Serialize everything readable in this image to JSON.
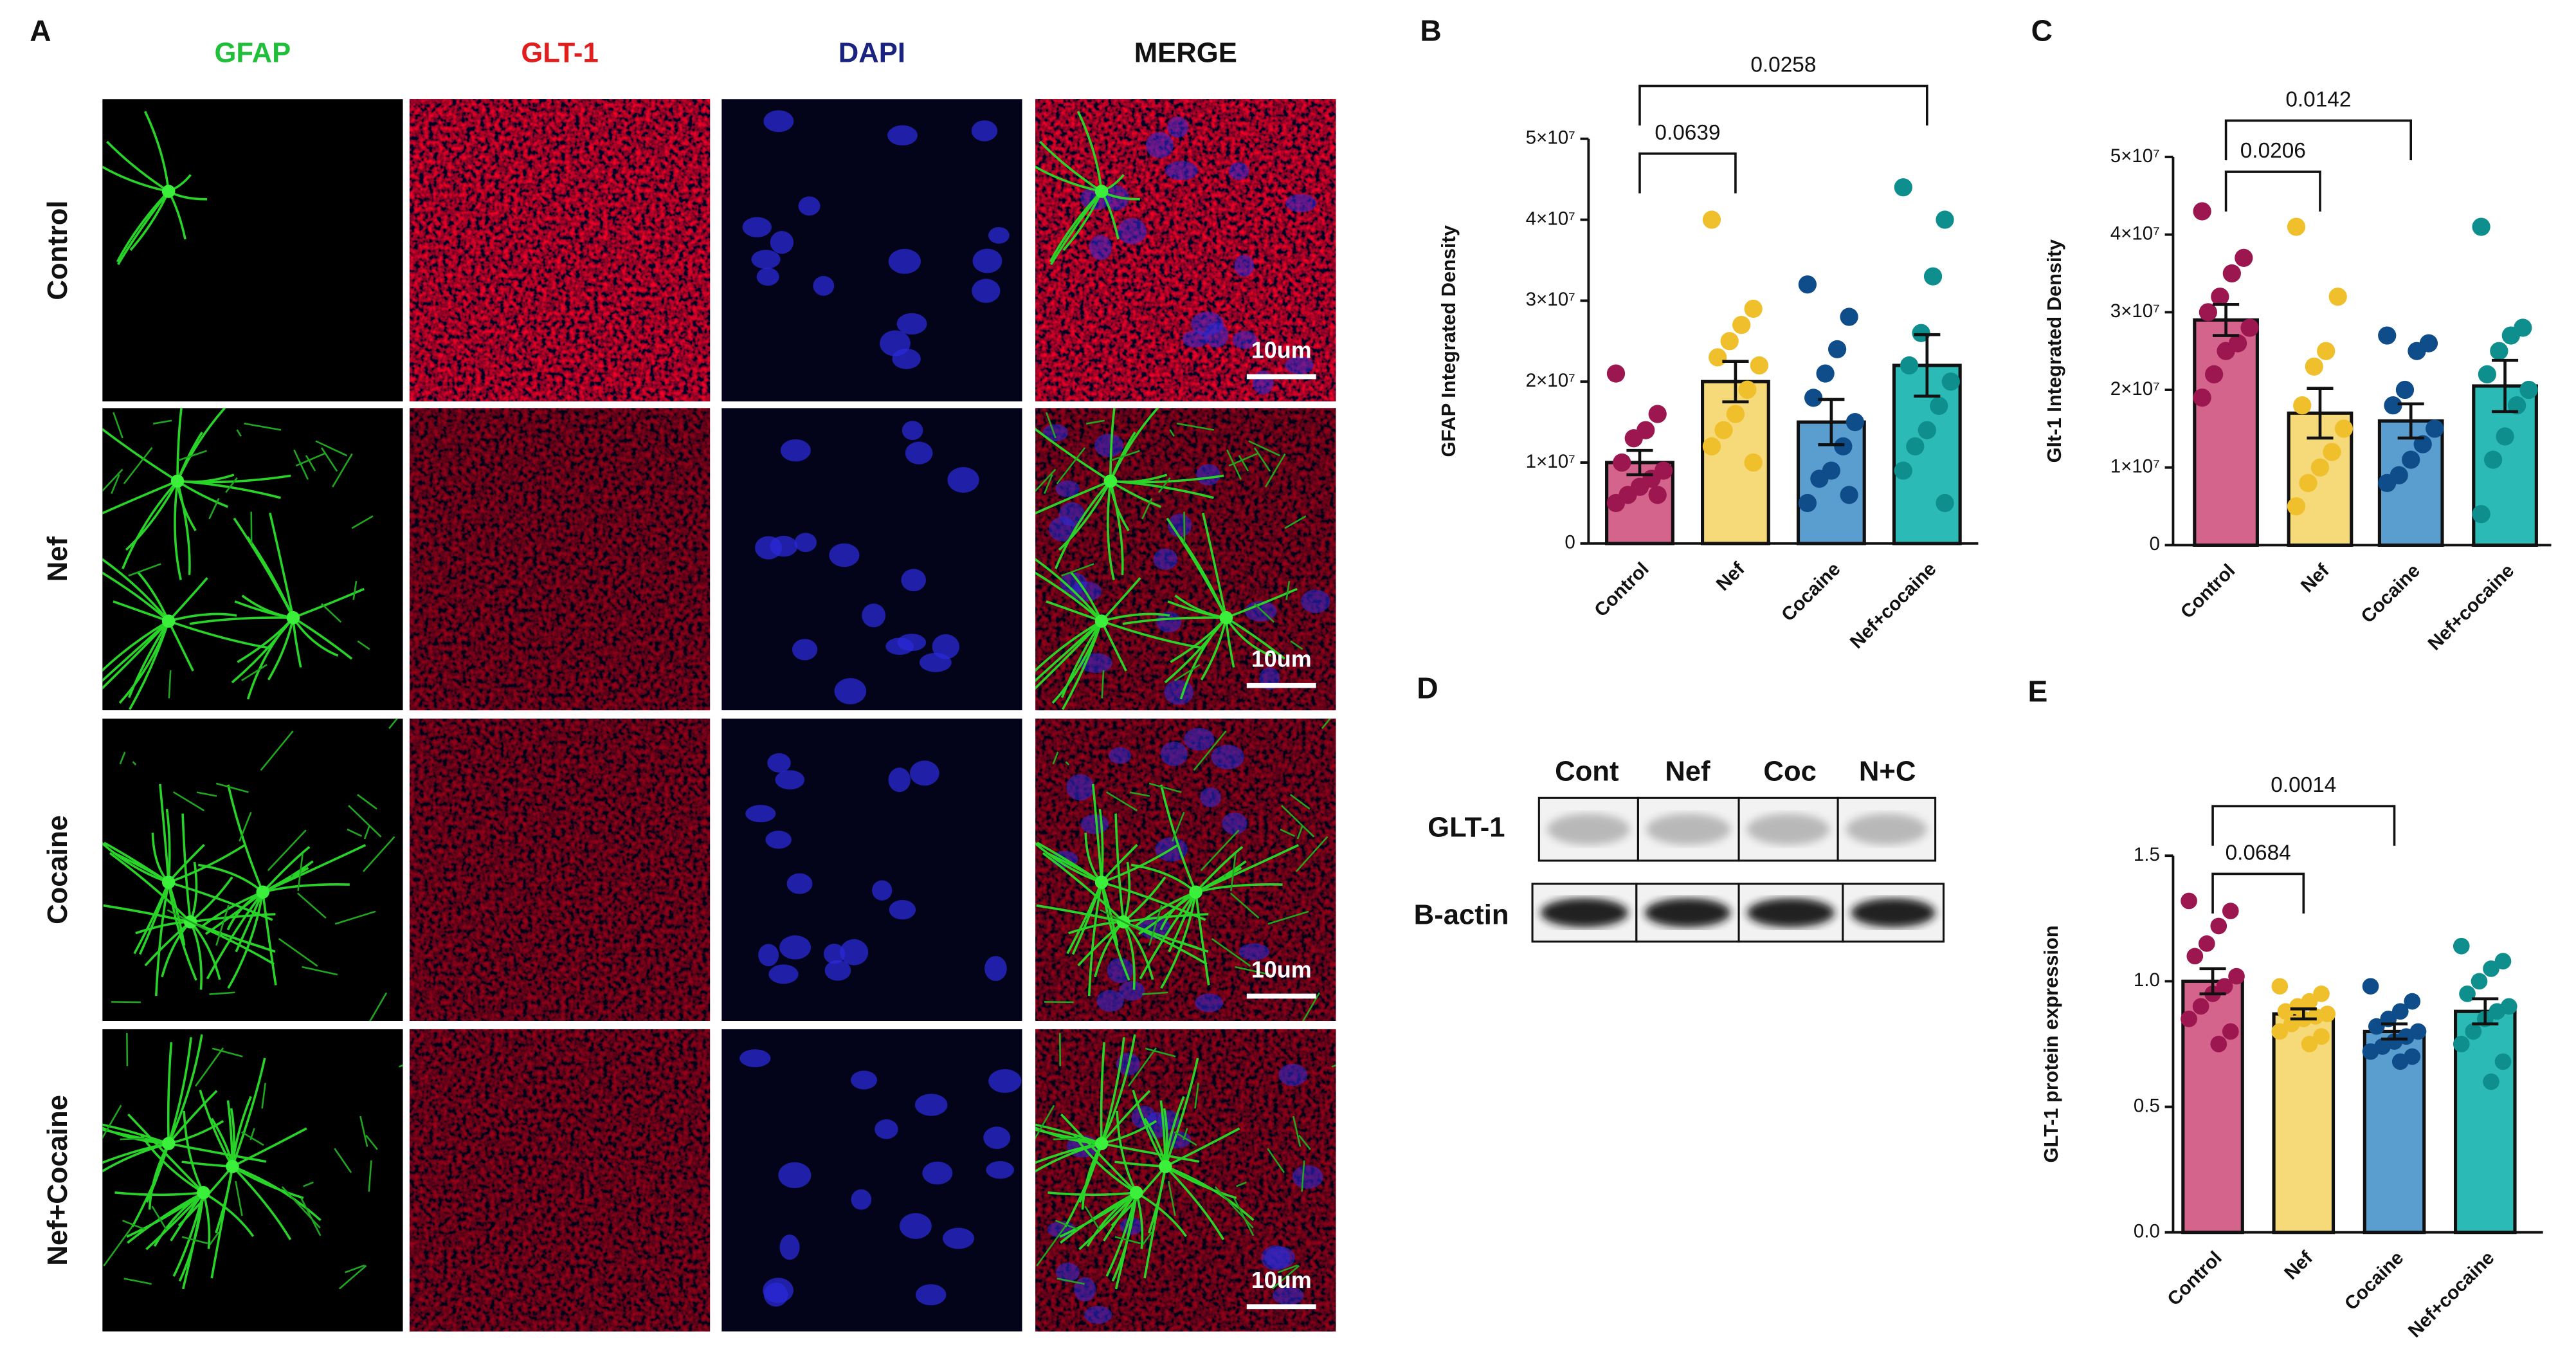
{
  "panel_labels": [
    "A",
    "B",
    "C",
    "D",
    "E"
  ],
  "imaging": {
    "channels": [
      "GFAP",
      "GLT-1",
      "DAPI",
      "MERGE"
    ],
    "channel_colors": [
      "#1fbf3a",
      "#e01e1e",
      "#1b2380",
      "#111111"
    ],
    "conditions": [
      "Control",
      "Nef",
      "Cocaine",
      "Nef+Cocaine"
    ],
    "scale_bar_labels": [
      "10um",
      "10um",
      "10um",
      "10um"
    ]
  },
  "western_blot": {
    "lanes": [
      "Cont",
      "Nef",
      "Coc",
      "N+C"
    ],
    "proteins": [
      "GLT-1",
      "B-actin"
    ]
  },
  "chart_data": [
    {
      "type": "bar",
      "y_label": "GFAP Integrated Density",
      "categories": [
        "Control",
        "Nef",
        "Cocaine",
        "Nef+cocaine"
      ],
      "colors": [
        "#d4648c",
        "#f6d978",
        "#5a9dcf",
        "#2bbab5"
      ],
      "point_colors": [
        "#9c1650",
        "#f0bf2c",
        "#0f4c8a",
        "#0e8f8d"
      ],
      "values": [
        10000000,
        20000000,
        15000000,
        22000000
      ],
      "errors": [
        1500000,
        2500000,
        2800000,
        3800000
      ],
      "points": [
        [
          21000000,
          16000000,
          14000000,
          13000000,
          10000000,
          9000000,
          8000000,
          7000000,
          6000000,
          5000000,
          6000000
        ],
        [
          40000000,
          29000000,
          27000000,
          25000000,
          23000000,
          22000000,
          19000000,
          16000000,
          14000000,
          12000000,
          10000000
        ],
        [
          32000000,
          28000000,
          24000000,
          21000000,
          18000000,
          15000000,
          12000000,
          9000000,
          8000000,
          5000000,
          6000000
        ],
        [
          44000000,
          40000000,
          33000000,
          26000000,
          22000000,
          20000000,
          17000000,
          14000000,
          12000000,
          9000000,
          5000000
        ]
      ],
      "ylim": [
        0,
        50000000
      ],
      "yticks": [
        0,
        {
          "value": 10000000,
          "label": "1×10⁷"
        },
        {
          "value": 20000000,
          "label": "2×10⁷"
        },
        {
          "value": 30000000,
          "label": "3×10⁷"
        },
        {
          "value": 40000000,
          "label": "4×10⁷"
        },
        {
          "value": 50000000,
          "label": "5×10⁷"
        }
      ],
      "comparisons": [
        {
          "pair": [
            0,
            1
          ],
          "p": "0.0639"
        },
        {
          "pair": [
            0,
            3
          ],
          "p": "0.0258"
        }
      ]
    },
    {
      "type": "bar",
      "y_label": "Glt-1 Integrated Density",
      "categories": [
        "Control",
        "Nef",
        "Cocaine",
        "Nef+cocaine"
      ],
      "colors": [
        "#d4648c",
        "#f6d978",
        "#5a9dcf",
        "#2bbab5"
      ],
      "point_colors": [
        "#9c1650",
        "#f0bf2c",
        "#0f4c8a",
        "#0e8f8d"
      ],
      "values": [
        29000000,
        17000000,
        16000000,
        20500000
      ],
      "errors": [
        2000000,
        3200000,
        2200000,
        3300000
      ],
      "points": [
        [
          43000000,
          37000000,
          35000000,
          32000000,
          30000000,
          28000000,
          26000000,
          25000000,
          22000000,
          19000000
        ],
        [
          41000000,
          32000000,
          25000000,
          23000000,
          18000000,
          15000000,
          12000000,
          10000000,
          8000000,
          5000000
        ],
        [
          27000000,
          26000000,
          25000000,
          20000000,
          18000000,
          15000000,
          13000000,
          11000000,
          9000000,
          8000000
        ],
        [
          41000000,
          28000000,
          27000000,
          25000000,
          22000000,
          20000000,
          18000000,
          14000000,
          11000000,
          4000000
        ]
      ],
      "ylim": [
        0,
        50000000
      ],
      "yticks": [
        0,
        {
          "value": 10000000,
          "label": "1×10⁷"
        },
        {
          "value": 20000000,
          "label": "2×10⁷"
        },
        {
          "value": 30000000,
          "label": "3×10⁷"
        },
        {
          "value": 40000000,
          "label": "4×10⁷"
        },
        {
          "value": 50000000,
          "label": "5×10⁷"
        }
      ],
      "comparisons": [
        {
          "pair": [
            0,
            1
          ],
          "p": "0.0206"
        },
        {
          "pair": [
            0,
            2
          ],
          "p": "0.0142"
        }
      ]
    },
    {
      "type": "bar",
      "y_label": "GLT-1 protein expression",
      "categories": [
        "Control",
        "Nef",
        "Cocaine",
        "Nef+cocaine"
      ],
      "colors": [
        "#d4648c",
        "#f6d978",
        "#5a9dcf",
        "#2bbab5"
      ],
      "point_colors": [
        "#9c1650",
        "#f0bf2c",
        "#0f4c8a",
        "#0e8f8d"
      ],
      "values": [
        1.0,
        0.87,
        0.8,
        0.88
      ],
      "errors": [
        0.05,
        0.02,
        0.03,
        0.05
      ],
      "points": [
        [
          1.32,
          1.28,
          1.22,
          1.15,
          1.1,
          1.02,
          0.98,
          0.95,
          0.9,
          0.85,
          0.8,
          0.75
        ],
        [
          0.98,
          0.95,
          0.92,
          0.9,
          0.88,
          0.87,
          0.86,
          0.85,
          0.83,
          0.8,
          0.78,
          0.75
        ],
        [
          0.98,
          0.92,
          0.88,
          0.85,
          0.82,
          0.8,
          0.78,
          0.76,
          0.74,
          0.72,
          0.7,
          0.68
        ],
        [
          1.14,
          1.08,
          1.05,
          1.0,
          0.95,
          0.9,
          0.88,
          0.85,
          0.8,
          0.75,
          0.68,
          0.6
        ]
      ],
      "ylim": [
        0,
        1.5
      ],
      "yticks": [
        {
          "value": 0,
          "label": "0.0"
        },
        {
          "value": 0.5,
          "label": "0.5"
        },
        {
          "value": 1,
          "label": "1.0"
        },
        {
          "value": 1.5,
          "label": "1.5"
        }
      ],
      "comparisons": [
        {
          "pair": [
            0,
            1
          ],
          "p": "0.0684"
        },
        {
          "pair": [
            0,
            2
          ],
          "p": "0.0014"
        }
      ]
    }
  ]
}
